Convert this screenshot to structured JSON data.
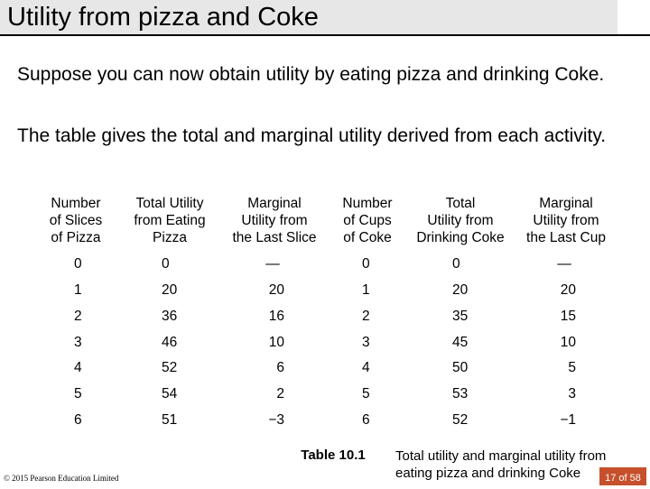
{
  "title": "Utility from pizza and Coke",
  "paragraphs": [
    "Suppose you can now obtain utility by eating pizza and drinking Coke.",
    "The table gives the total and marginal utility derived from each activity."
  ],
  "table": {
    "headers": [
      [
        "Number",
        "of Slices",
        "of Pizza"
      ],
      [
        "Total Utility",
        "from Eating",
        "Pizza"
      ],
      [
        "Marginal",
        "Utility from",
        "the Last Slice"
      ],
      [
        "Number",
        "of Cups",
        "of Coke"
      ],
      [
        "Total",
        "Utility from",
        "Drinking Coke"
      ],
      [
        "Marginal",
        "Utility from",
        "the Last Cup"
      ]
    ],
    "rows": [
      [
        "0",
        "0",
        "—",
        "0",
        "0",
        "—"
      ],
      [
        "1",
        "20",
        "20",
        "1",
        "20",
        "20"
      ],
      [
        "2",
        "36",
        "16",
        "2",
        "35",
        "15"
      ],
      [
        "3",
        "46",
        "10",
        "3",
        "45",
        "10"
      ],
      [
        "4",
        "52",
        "6",
        "4",
        "50",
        "5"
      ],
      [
        "5",
        "54",
        "2",
        "5",
        "53",
        "3"
      ],
      [
        "6",
        "51",
        "−3",
        "6",
        "52",
        "−1"
      ]
    ]
  },
  "caption_label": "Table 10.1",
  "caption_text": "Total utility and marginal utility from eating pizza and drinking Coke",
  "copyright": "© 2015 Pearson Education Limited",
  "page_number": "17 of 58",
  "colors": {
    "title_bar": "#e7e7e7",
    "page_badge": "#c6502c"
  }
}
